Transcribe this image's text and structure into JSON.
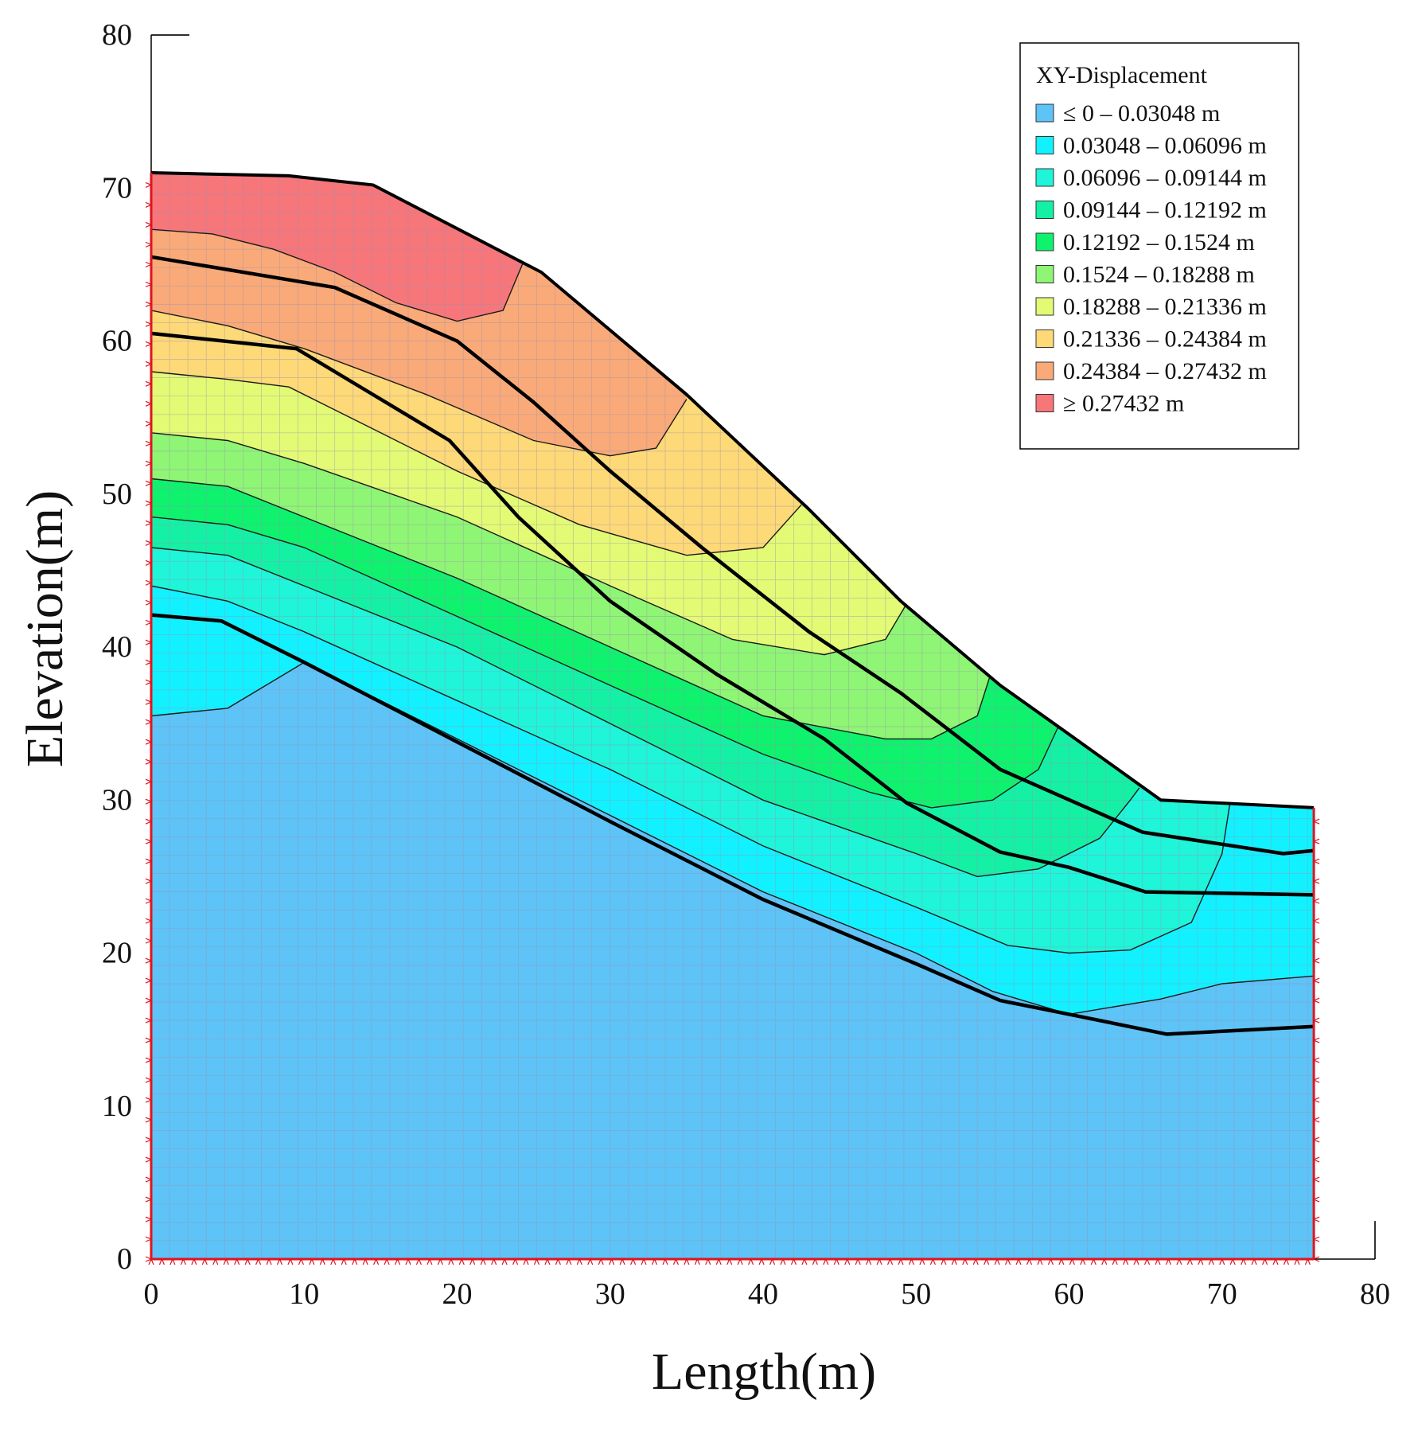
{
  "chart_data": {
    "type": "contour",
    "title": "",
    "xlabel": "Length(m)",
    "ylabel": "Elevation(m)",
    "xlim": [
      0,
      80
    ],
    "ylim": [
      0,
      80
    ],
    "xticks": [
      "0",
      "10",
      "20",
      "30",
      "40",
      "50",
      "60",
      "70",
      "80"
    ],
    "yticks": [
      "0",
      "10",
      "20",
      "30",
      "40",
      "50",
      "60",
      "70",
      "80"
    ],
    "legend": {
      "title": "XY-Displacement",
      "position": "top-right",
      "entries": [
        {
          "label": "≤ 0 – 0.03048 m",
          "color": "#5ec3f7"
        },
        {
          "label": "0.03048 – 0.06096 m",
          "color": "#12f1ff"
        },
        {
          "label": "0.06096 – 0.09144 m",
          "color": "#1ff5d8"
        },
        {
          "label": "0.09144 – 0.12192 m",
          "color": "#14f1a4"
        },
        {
          "label": "0.12192 – 0.1524 m",
          "color": "#0ef26d"
        },
        {
          "label": "0.1524 – 0.18288 m",
          "color": "#8ff575"
        },
        {
          "label": "0.18288 – 0.21336 m",
          "color": "#e3fa74"
        },
        {
          "label": "0.21336 – 0.24384 m",
          "color": "#fdd977"
        },
        {
          "label": "0.24384 – 0.27432 m",
          "color": "#f9aa78"
        },
        {
          "label": "≥ 0.27432 m",
          "color": "#f6767a"
        }
      ]
    },
    "slope_profile": [
      [
        0,
        71
      ],
      [
        9,
        70.8
      ],
      [
        14.5,
        70.2
      ],
      [
        25.5,
        64.5
      ],
      [
        35,
        56.5
      ],
      [
        43,
        49
      ],
      [
        49,
        43
      ],
      [
        55.5,
        37.5
      ],
      [
        60,
        34.3
      ],
      [
        66,
        30
      ],
      [
        76,
        29.5
      ]
    ],
    "contour_bands": [
      {
        "level": 0,
        "boundary": [
          [
            0,
            35.5
          ],
          [
            5,
            36
          ],
          [
            10,
            39
          ],
          [
            11,
            38.5
          ],
          [
            20,
            34
          ],
          [
            30,
            29
          ],
          [
            40,
            24
          ],
          [
            50,
            20
          ],
          [
            55,
            17.5
          ],
          [
            60,
            16
          ],
          [
            66,
            17
          ],
          [
            70,
            18
          ],
          [
            76,
            18.5
          ]
        ]
      },
      {
        "level": 1,
        "boundary": [
          [
            0,
            44
          ],
          [
            5,
            43
          ],
          [
            10,
            41
          ],
          [
            20,
            36.5
          ],
          [
            30,
            32
          ],
          [
            40,
            27
          ],
          [
            50,
            23
          ],
          [
            56,
            20.5
          ],
          [
            60,
            20
          ],
          [
            64,
            20.2
          ],
          [
            68,
            22
          ],
          [
            70,
            26.5
          ],
          [
            70.5,
            29.7
          ]
        ]
      },
      {
        "level": 2,
        "boundary": [
          [
            0,
            46.5
          ],
          [
            5,
            46
          ],
          [
            10,
            44
          ],
          [
            20,
            40
          ],
          [
            30,
            35
          ],
          [
            40,
            30
          ],
          [
            50,
            26.5
          ],
          [
            54,
            25
          ],
          [
            58,
            25.5
          ],
          [
            62,
            27.5
          ],
          [
            64,
            30
          ],
          [
            64.6,
            30.8
          ]
        ]
      },
      {
        "level": 3,
        "boundary": [
          [
            0,
            48.5
          ],
          [
            5,
            48
          ],
          [
            10,
            46.5
          ],
          [
            20,
            42
          ],
          [
            30,
            37.5
          ],
          [
            40,
            33
          ],
          [
            47,
            30.5
          ],
          [
            51,
            29.5
          ],
          [
            55,
            30
          ],
          [
            58,
            32
          ],
          [
            59.3,
            34.8
          ]
        ]
      },
      {
        "level": 4,
        "boundary": [
          [
            0,
            51
          ],
          [
            5,
            50.5
          ],
          [
            10,
            48.5
          ],
          [
            20,
            44.5
          ],
          [
            30,
            40
          ],
          [
            40,
            35.5
          ],
          [
            48,
            34
          ],
          [
            51,
            34
          ],
          [
            54,
            35.5
          ],
          [
            54.8,
            38
          ]
        ]
      },
      {
        "level": 5,
        "boundary": [
          [
            0,
            54
          ],
          [
            5,
            53.5
          ],
          [
            10,
            52
          ],
          [
            20,
            48.5
          ],
          [
            30,
            44
          ],
          [
            38,
            40.5
          ],
          [
            44,
            39.5
          ],
          [
            48,
            40.5
          ],
          [
            49.6,
            43.2
          ]
        ]
      },
      {
        "level": 6,
        "boundary": [
          [
            0,
            58
          ],
          [
            5,
            57.5
          ],
          [
            9,
            57
          ],
          [
            15,
            54
          ],
          [
            20,
            51.5
          ],
          [
            28,
            48
          ],
          [
            35,
            46
          ],
          [
            40,
            46.5
          ],
          [
            42.5,
            49.3
          ]
        ]
      },
      {
        "level": 7,
        "boundary": [
          [
            0,
            62
          ],
          [
            5,
            61
          ],
          [
            10,
            59.5
          ],
          [
            18,
            56.5
          ],
          [
            25,
            53.5
          ],
          [
            30,
            52.5
          ],
          [
            33,
            53
          ],
          [
            35,
            56.2
          ]
        ]
      },
      {
        "level": 8,
        "boundary": [
          [
            0,
            67.3
          ],
          [
            4,
            67
          ],
          [
            8,
            66
          ],
          [
            12,
            64.5
          ],
          [
            16,
            62.5
          ],
          [
            20,
            61.3
          ],
          [
            23,
            62
          ],
          [
            24.3,
            65.1
          ]
        ]
      }
    ],
    "layer_boundaries": [
      [
        [
          0,
          65.5
        ],
        [
          12,
          63.5
        ],
        [
          20,
          60
        ],
        [
          25,
          56
        ],
        [
          30,
          51.5
        ],
        [
          36,
          46.5
        ],
        [
          43,
          41
        ],
        [
          49,
          37
        ],
        [
          55.5,
          32
        ],
        [
          64.8,
          27.9
        ],
        [
          74,
          26.5
        ],
        [
          76,
          26.7
        ]
      ],
      [
        [
          0,
          60.5
        ],
        [
          9.5,
          59.5
        ],
        [
          14,
          56.8
        ],
        [
          19.5,
          53.5
        ],
        [
          24,
          48.5
        ],
        [
          30,
          43
        ],
        [
          37,
          38.2
        ],
        [
          44,
          34
        ],
        [
          49.4,
          29.8
        ],
        [
          55.5,
          26.6
        ],
        [
          60,
          25.6
        ],
        [
          65,
          24
        ],
        [
          76,
          23.8
        ]
      ],
      [
        [
          0,
          42.1
        ],
        [
          4.6,
          41.7
        ],
        [
          10,
          39
        ],
        [
          20,
          33.8
        ],
        [
          30,
          28.6
        ],
        [
          40,
          23.5
        ],
        [
          50,
          19.3
        ],
        [
          55.5,
          16.9
        ],
        [
          60,
          16
        ],
        [
          66.4,
          14.7
        ],
        [
          76,
          15.2
        ]
      ]
    ]
  }
}
